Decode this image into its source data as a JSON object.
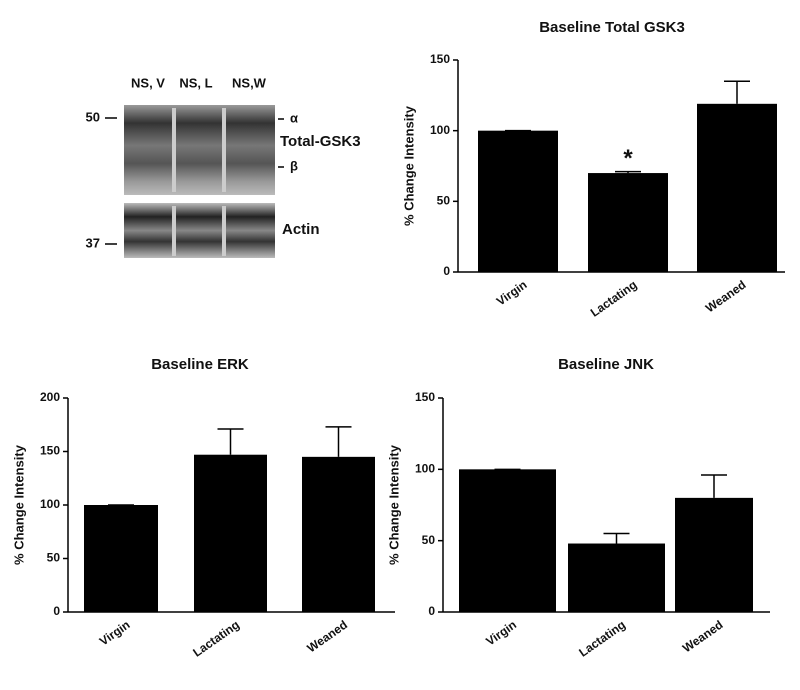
{
  "blot": {
    "lanes": [
      "NS, V",
      "NS, L",
      "NS,W"
    ],
    "markers": [
      "50",
      "37"
    ],
    "bands": [
      "α",
      "β"
    ],
    "protein": "Total-GSK3",
    "control": "Actin"
  },
  "chart_data": [
    {
      "type": "bar",
      "title": "Baseline Total GSK3",
      "ylabel": "% Change  Intensity",
      "categories": [
        "Virgin",
        "Lactating",
        "Weaned"
      ],
      "values": [
        100,
        70,
        119
      ],
      "errors": [
        0,
        1,
        16
      ],
      "color": "#000000",
      "ylim": [
        0,
        150
      ],
      "yticks": [
        0,
        50,
        100,
        150
      ],
      "annotation": "*"
    },
    {
      "type": "bar",
      "title": "Baseline ERK",
      "ylabel": "% Change Intensity",
      "categories": [
        "Virgin",
        "Lactating",
        "Weaned"
      ],
      "values": [
        100,
        147,
        145
      ],
      "errors": [
        0,
        24,
        28
      ],
      "color": "#000000",
      "ylim": [
        0,
        200
      ],
      "yticks": [
        0,
        50,
        100,
        150,
        200
      ]
    },
    {
      "type": "bar",
      "title": "Baseline JNK",
      "ylabel": "% Change Intensity",
      "categories": [
        "Virgin",
        "Lactating",
        "Weaned"
      ],
      "values": [
        100,
        48,
        80
      ],
      "errors": [
        0,
        7,
        16
      ],
      "color": "#000000",
      "ylim": [
        0,
        150
      ],
      "yticks": [
        0,
        50,
        100,
        150
      ]
    }
  ]
}
